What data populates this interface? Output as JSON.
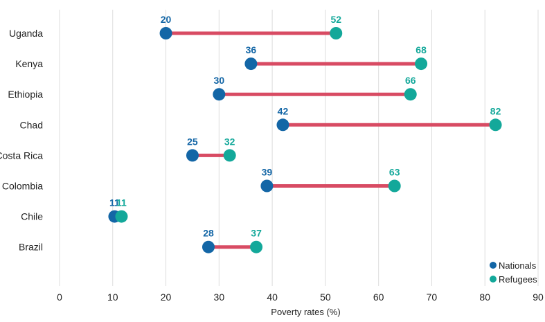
{
  "chart_data": {
    "type": "dumbbell",
    "title": "",
    "xlabel": "Poverty rates (%)",
    "ylabel": "",
    "xlim": [
      0,
      90
    ],
    "xticks": [
      0,
      10,
      20,
      30,
      40,
      50,
      60,
      70,
      80,
      90
    ],
    "grid": "vertical",
    "legend_position": "bottom-right",
    "categories": [
      "Uganda",
      "Kenya",
      "Ethiopia",
      "Chad",
      "Costa Rica",
      "Colombia",
      "Chile",
      "Brazil"
    ],
    "series": [
      {
        "name": "Nationals",
        "color": "#1366a6",
        "values": [
          20,
          36,
          30,
          42,
          25,
          39,
          11,
          28
        ]
      },
      {
        "name": "Refugees",
        "color": "#13a89a",
        "values": [
          52,
          68,
          66,
          82,
          32,
          63,
          11,
          37
        ]
      }
    ],
    "connector_color": "#d84b63",
    "labels": {
      "nationals": [
        "20",
        "36",
        "30",
        "42",
        "25",
        "39",
        "11",
        "28"
      ],
      "refugees": [
        "52",
        "68",
        "66",
        "82",
        "32",
        "63",
        "11",
        "37"
      ]
    }
  }
}
